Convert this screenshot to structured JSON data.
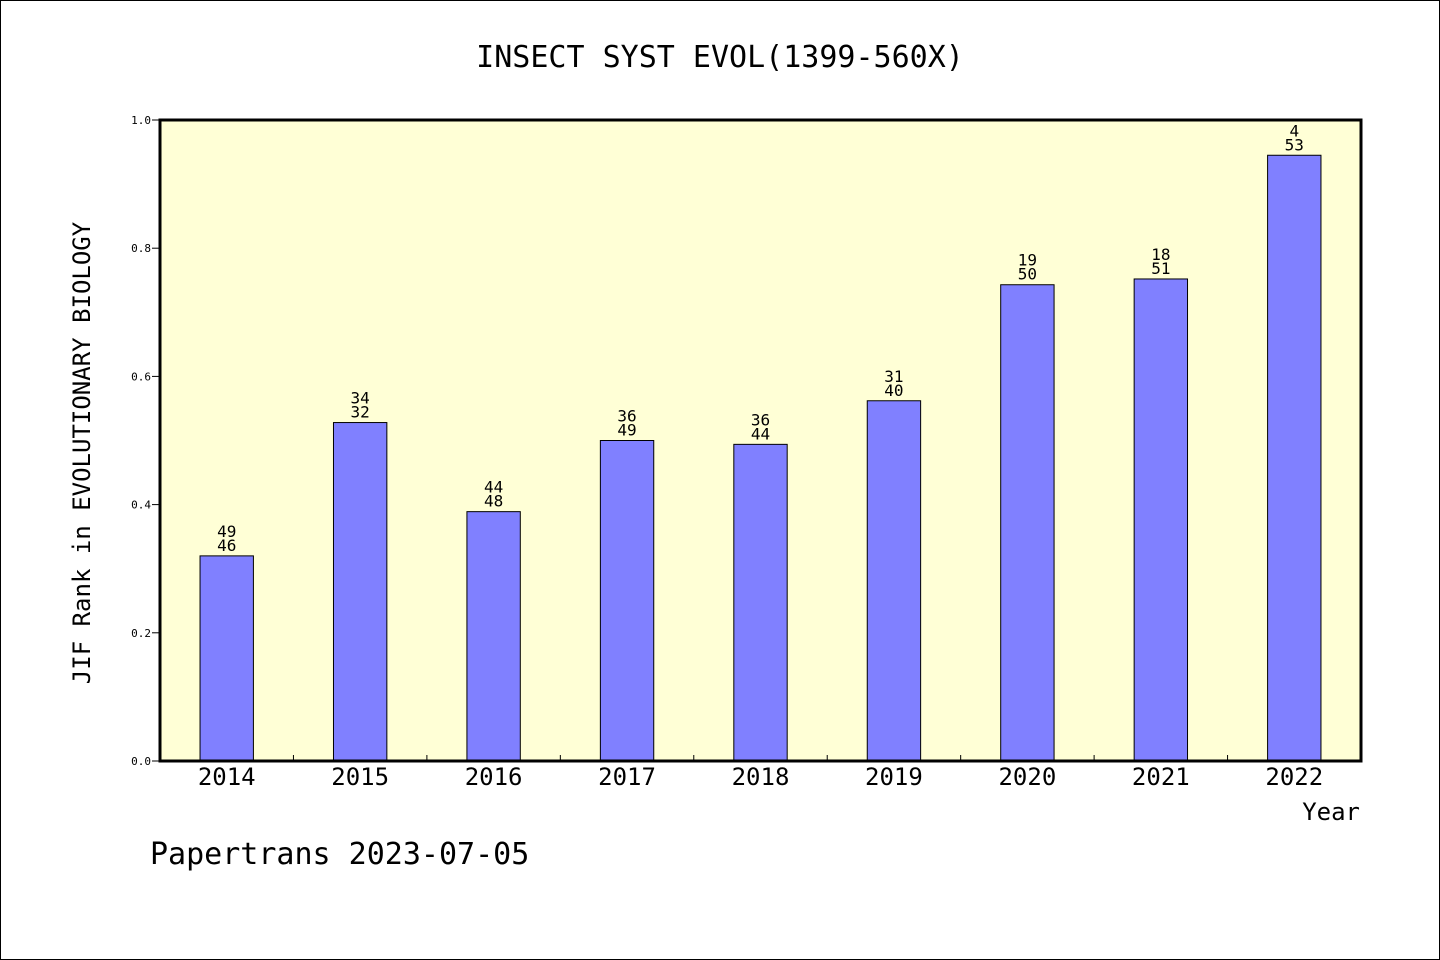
{
  "chart_data": {
    "type": "bar",
    "title": "INSECT SYST EVOL(1399-560X)",
    "xlabel": "Year",
    "ylabel": "JIF Rank in EVOLUTIONARY BIOLOGY",
    "ylim": [
      0.0,
      1.0
    ],
    "yticks": [
      "0.0",
      "0.2",
      "0.4",
      "0.6",
      "0.8",
      "1.0"
    ],
    "categories": [
      "2014",
      "2015",
      "2016",
      "2017",
      "2018",
      "2019",
      "2020",
      "2021",
      "2022"
    ],
    "values": [
      0.32,
      0.528,
      0.389,
      0.5,
      0.494,
      0.562,
      0.743,
      0.752,
      0.945
    ],
    "bar_labels": [
      [
        "49",
        "46"
      ],
      [
        "34",
        "32"
      ],
      [
        "44",
        "48"
      ],
      [
        "36",
        "49"
      ],
      [
        "36",
        "44"
      ],
      [
        "31",
        "40"
      ],
      [
        "19",
        "50"
      ],
      [
        "18",
        "51"
      ],
      [
        "4",
        "53"
      ]
    ],
    "grid": false,
    "colors": {
      "plot_background": "#ffffd6",
      "bar_fill": "#8080ff",
      "bar_stroke": "#000000"
    }
  },
  "footer": {
    "source": "Papertrans 2023-07-05"
  }
}
